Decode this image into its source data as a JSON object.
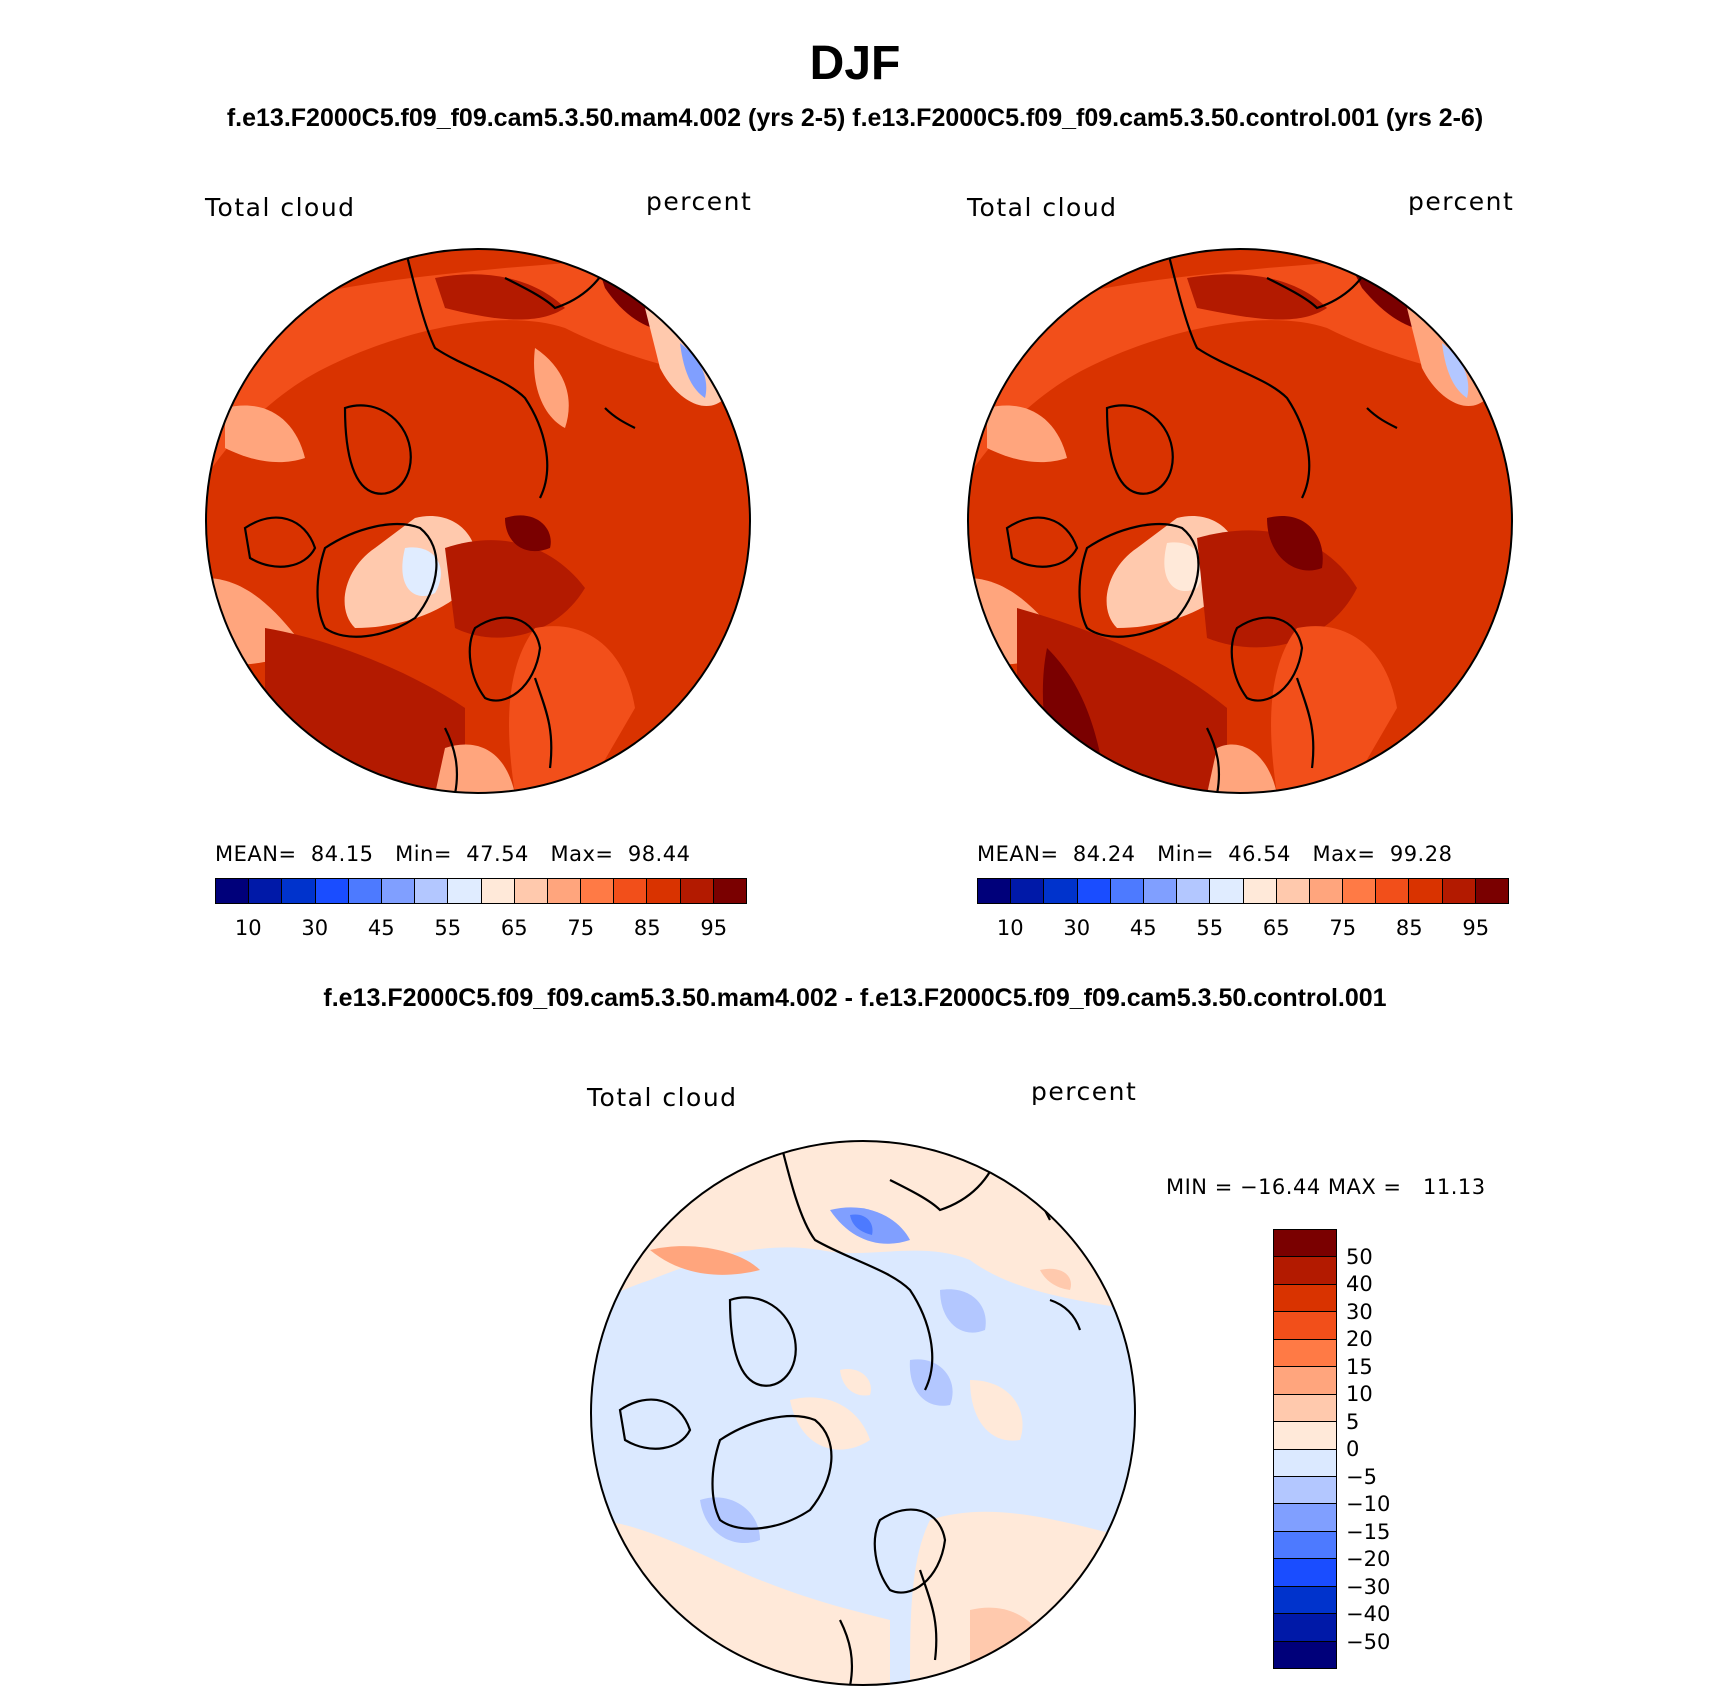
{
  "figure": {
    "title": "DJF",
    "subtitle_top": "f.e13.F2000C5.f09_f09.cam5.3.50.mam4.002 (yrs 2-5) f.e13.F2000C5.f09_f09.cam5.3.50.control.001 (yrs 2-6)",
    "subtitle_diff": "f.e13.F2000C5.f09_f09.cam5.3.50.mam4.002 - f.e13.F2000C5.f09_f09.cam5.3.50.control.001"
  },
  "colors": {
    "abs_scale": [
      "#00007a",
      "#0019a8",
      "#0033cc",
      "#1a4dff",
      "#4d7aff",
      "#809fff",
      "#b3c7ff",
      "#e0ecff",
      "#ffe9d9",
      "#ffc9ad",
      "#ffa57d",
      "#ff7a45",
      "#f24f1a",
      "#d93300",
      "#b31a00",
      "#7a0000"
    ],
    "diff_scale": [
      "#7a0000",
      "#b31a00",
      "#d93300",
      "#f24f1a",
      "#ff7a45",
      "#ffa57d",
      "#ffc9ad",
      "#ffe9d9",
      "#dbe9ff",
      "#b3c7ff",
      "#809fff",
      "#4d7aff",
      "#1a4dff",
      "#0033cc",
      "#0019a8",
      "#00007a"
    ]
  },
  "panels": {
    "left": {
      "variable": "Total cloud",
      "units": "percent",
      "mean_label": "MEAN=",
      "mean": "84.15",
      "min_label": "Min=",
      "min": "47.54",
      "max_label": "Max=",
      "max": "98.44"
    },
    "right": {
      "variable": "Total cloud",
      "units": "percent",
      "mean_label": "MEAN=",
      "mean": "84.24",
      "min_label": "Min=",
      "min": "46.54",
      "max_label": "Max=",
      "max": "99.28"
    },
    "diff": {
      "variable": "Total cloud",
      "units": "percent",
      "minmax_text": "MIN = −16.44 MAX =   11.13"
    }
  },
  "chart_data": [
    {
      "type": "heatmap",
      "title": "Total cloud",
      "units": "percent",
      "projection": "north polar stereographic",
      "mean": 84.15,
      "min": 47.54,
      "max": 98.44,
      "colorbar_ticks": [
        "10",
        "30",
        "45",
        "55",
        "65",
        "75",
        "85",
        "95"
      ]
    },
    {
      "type": "heatmap",
      "title": "Total cloud",
      "units": "percent",
      "projection": "north polar stereographic",
      "mean": 84.24,
      "min": 46.54,
      "max": 99.28,
      "colorbar_ticks": [
        "10",
        "30",
        "45",
        "55",
        "65",
        "75",
        "85",
        "95"
      ]
    },
    {
      "type": "heatmap",
      "title": "Total cloud",
      "units": "percent",
      "projection": "north polar stereographic",
      "min": -16.44,
      "max": 11.13,
      "colorbar_ticks": [
        "50",
        "40",
        "30",
        "20",
        "15",
        "10",
        "5",
        "0",
        "−5",
        "−10",
        "−15",
        "−20",
        "−30",
        "−40",
        "−50"
      ]
    }
  ]
}
